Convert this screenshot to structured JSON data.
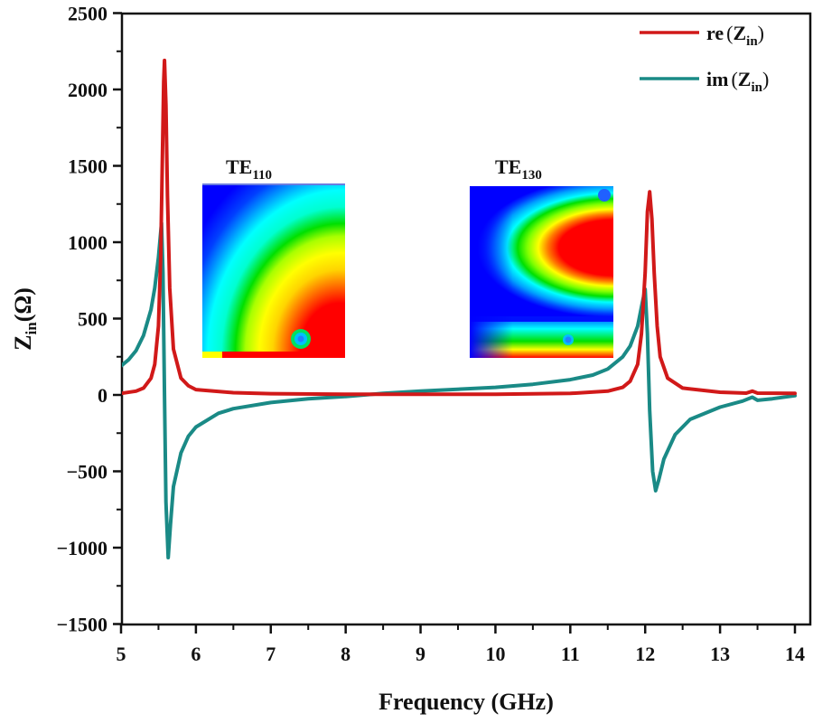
{
  "chart_data": {
    "type": "line",
    "title": "",
    "xlabel": "Frequency (GHz)",
    "ylabel": {
      "main": "Z",
      "sub": "in",
      "unit": "(Ω)"
    },
    "xlim": [
      5,
      14.2
    ],
    "ylim": [
      -1500,
      2500
    ],
    "x_ticks": [
      5,
      6,
      7,
      8,
      9,
      10,
      11,
      12,
      13,
      14
    ],
    "x_tick_labels": [
      "5",
      "6",
      "7",
      "8",
      "9",
      "10",
      "11",
      "12",
      "13",
      "14"
    ],
    "y_ticks": [
      -1500,
      -1000,
      -500,
      0,
      500,
      1000,
      1500,
      2000,
      2500
    ],
    "y_tick_labels": [
      "−1500",
      "−1000",
      "−500",
      "0",
      "500",
      "1000",
      "1500",
      "2000",
      "2500"
    ],
    "grid": false,
    "legend_position": "top-right",
    "series": [
      {
        "name": "re",
        "legend_prefix": "re",
        "legend_main": "Z",
        "legend_sub": "in",
        "color": "#d11919",
        "points": [
          [
            5.0,
            10
          ],
          [
            5.2,
            25
          ],
          [
            5.3,
            45
          ],
          [
            5.4,
            110
          ],
          [
            5.45,
            200
          ],
          [
            5.5,
            450
          ],
          [
            5.53,
            900
          ],
          [
            5.55,
            1500
          ],
          [
            5.57,
            2050
          ],
          [
            5.58,
            2190
          ],
          [
            5.6,
            1900
          ],
          [
            5.62,
            1300
          ],
          [
            5.65,
            700
          ],
          [
            5.7,
            300
          ],
          [
            5.8,
            110
          ],
          [
            5.9,
            60
          ],
          [
            6.0,
            35
          ],
          [
            6.5,
            15
          ],
          [
            7.0,
            8
          ],
          [
            8.0,
            5
          ],
          [
            9.0,
            5
          ],
          [
            10.0,
            5
          ],
          [
            11.0,
            10
          ],
          [
            11.5,
            25
          ],
          [
            11.7,
            50
          ],
          [
            11.8,
            90
          ],
          [
            11.9,
            200
          ],
          [
            11.95,
            400
          ],
          [
            12.0,
            800
          ],
          [
            12.03,
            1200
          ],
          [
            12.06,
            1330
          ],
          [
            12.09,
            1150
          ],
          [
            12.12,
            800
          ],
          [
            12.16,
            450
          ],
          [
            12.2,
            250
          ],
          [
            12.3,
            110
          ],
          [
            12.5,
            45
          ],
          [
            13.0,
            18
          ],
          [
            13.35,
            12
          ],
          [
            13.43,
            25
          ],
          [
            13.5,
            12
          ],
          [
            14.0,
            10
          ]
        ]
      },
      {
        "name": "im",
        "legend_prefix": "im",
        "legend_main": "Z",
        "legend_sub": "in",
        "color": "#1a8a86",
        "points": [
          [
            5.0,
            190
          ],
          [
            5.1,
            230
          ],
          [
            5.2,
            290
          ],
          [
            5.3,
            390
          ],
          [
            5.4,
            560
          ],
          [
            5.45,
            700
          ],
          [
            5.5,
            900
          ],
          [
            5.54,
            1125
          ],
          [
            5.56,
            800
          ],
          [
            5.58,
            0
          ],
          [
            5.6,
            -700
          ],
          [
            5.63,
            -1065
          ],
          [
            5.66,
            -850
          ],
          [
            5.7,
            -600
          ],
          [
            5.8,
            -380
          ],
          [
            5.9,
            -270
          ],
          [
            6.0,
            -210
          ],
          [
            6.3,
            -120
          ],
          [
            6.5,
            -90
          ],
          [
            7.0,
            -50
          ],
          [
            7.5,
            -25
          ],
          [
            8.0,
            -10
          ],
          [
            8.5,
            10
          ],
          [
            9.0,
            25
          ],
          [
            10.0,
            50
          ],
          [
            10.5,
            70
          ],
          [
            11.0,
            100
          ],
          [
            11.3,
            130
          ],
          [
            11.5,
            170
          ],
          [
            11.7,
            250
          ],
          [
            11.8,
            320
          ],
          [
            11.9,
            450
          ],
          [
            11.96,
            600
          ],
          [
            12.0,
            692
          ],
          [
            12.03,
            400
          ],
          [
            12.06,
            -100
          ],
          [
            12.1,
            -500
          ],
          [
            12.14,
            -627
          ],
          [
            12.18,
            -560
          ],
          [
            12.25,
            -420
          ],
          [
            12.4,
            -260
          ],
          [
            12.6,
            -160
          ],
          [
            13.0,
            -80
          ],
          [
            13.3,
            -40
          ],
          [
            13.43,
            -15
          ],
          [
            13.5,
            -35
          ],
          [
            13.7,
            -25
          ],
          [
            14.0,
            -5
          ]
        ]
      }
    ],
    "annotations": [
      {
        "label_main": "TE",
        "label_sub": "110",
        "type": "field-map-inset",
        "mode": "110"
      },
      {
        "label_main": "TE",
        "label_sub": "130",
        "type": "field-map-inset",
        "mode": "130"
      }
    ]
  }
}
